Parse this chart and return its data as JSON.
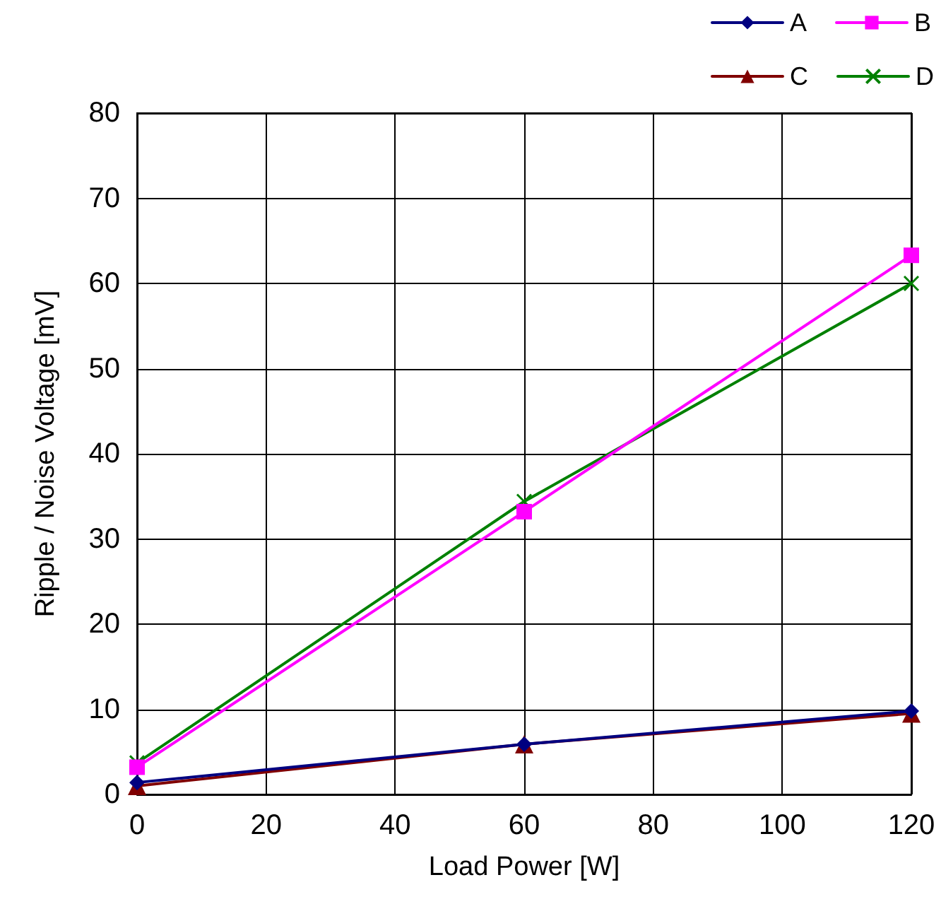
{
  "chart_data": {
    "type": "line",
    "xlabel": "Load Power [W]",
    "ylabel": "Ripple / Noise Voltage [mV]",
    "x": [
      0,
      60,
      120
    ],
    "series": [
      {
        "name": "A",
        "color": "#000080",
        "marker": "diamond",
        "values": [
          1.4,
          5.9,
          9.8
        ]
      },
      {
        "name": "B",
        "color": "#ff00ff",
        "marker": "square",
        "values": [
          3.2,
          33.2,
          63.3
        ]
      },
      {
        "name": "C",
        "color": "#800000",
        "marker": "triangle",
        "values": [
          1.0,
          5.9,
          9.5
        ]
      },
      {
        "name": "D",
        "color": "#008000",
        "marker": "cross",
        "values": [
          3.7,
          34.4,
          60.0
        ]
      }
    ],
    "xlim": [
      0,
      120
    ],
    "xticks": [
      0,
      20,
      40,
      60,
      80,
      100,
      120
    ],
    "ylim": [
      0,
      80
    ],
    "yticks": [
      0,
      10,
      20,
      30,
      40,
      50,
      60,
      70,
      80
    ],
    "grid": true,
    "legend": "top right",
    "line_style": "solid"
  }
}
